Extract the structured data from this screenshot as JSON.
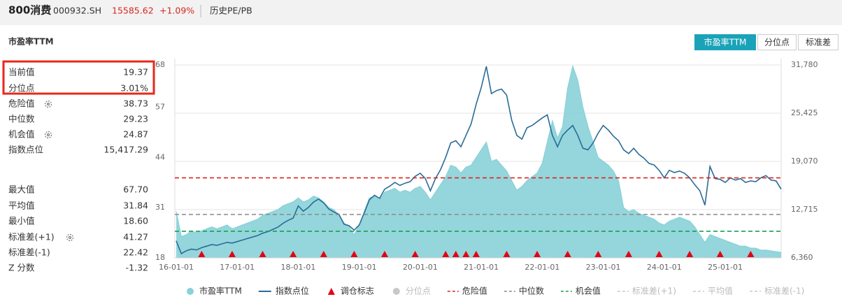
{
  "header": {
    "name": "800消费",
    "code": "000932.SH",
    "price": "15585.62",
    "change": "+1.09%",
    "tab": "历史PE/PB"
  },
  "buttons": [
    "市盈率TTM",
    "分位点",
    "标准差"
  ],
  "stats": {
    "rows": [
      {
        "label": "当前值",
        "value": "19.37"
      },
      {
        "label": "分位点",
        "value": "3.01%"
      },
      {
        "label": "危险值",
        "value": "38.73"
      },
      {
        "label": "中位数",
        "value": "29.23"
      },
      {
        "label": "机会值",
        "value": "24.87"
      },
      {
        "label": "指数点位",
        "value": "15,417.29"
      },
      {
        "label": "最大值",
        "value": "67.70"
      },
      {
        "label": "平均值",
        "value": "31.84"
      },
      {
        "label": "最小值",
        "value": "18.60"
      },
      {
        "label": "标准差(+1)",
        "value": "41.27"
      },
      {
        "label": "标准差(-1)",
        "value": "22.42"
      },
      {
        "label": "Z 分数",
        "value": "-1.32"
      }
    ]
  },
  "chart_data": {
    "type": "line",
    "title": "市盈率TTM",
    "x": [
      "16-01-01",
      "16-02-01",
      "16-03-01",
      "16-04-01",
      "16-05-01",
      "16-06-01",
      "16-07-01",
      "16-08-01",
      "16-09-01",
      "16-10-01",
      "16-11-01",
      "16-12-01",
      "17-01-01",
      "17-02-01",
      "17-03-01",
      "17-04-01",
      "17-05-01",
      "17-06-01",
      "17-07-01",
      "17-08-01",
      "17-09-01",
      "17-10-01",
      "17-11-01",
      "17-12-01",
      "18-01-01",
      "18-02-01",
      "18-03-01",
      "18-04-01",
      "18-05-01",
      "18-06-01",
      "18-07-01",
      "18-08-01",
      "18-09-01",
      "18-10-01",
      "18-11-01",
      "18-12-01",
      "19-01-01",
      "19-02-01",
      "19-03-01",
      "19-04-01",
      "19-05-01",
      "19-06-01",
      "19-07-01",
      "19-08-01",
      "19-09-01",
      "19-10-01",
      "19-11-01",
      "19-12-01",
      "20-01-01",
      "20-02-01",
      "20-03-01",
      "20-04-01",
      "20-05-01",
      "20-06-01",
      "20-07-01",
      "20-08-01",
      "20-09-01",
      "20-10-01",
      "20-11-01",
      "20-12-01",
      "21-01-01",
      "21-02-01",
      "21-03-01",
      "21-04-01",
      "21-05-01",
      "21-06-01",
      "21-07-01",
      "21-08-01",
      "21-09-01",
      "21-10-01",
      "21-11-01",
      "21-12-01",
      "22-01-01",
      "22-02-01",
      "22-03-01",
      "22-04-01",
      "22-05-01",
      "22-06-01",
      "22-07-01",
      "22-08-01",
      "22-09-01",
      "22-10-01",
      "22-11-01",
      "22-12-01",
      "23-01-01",
      "23-02-01",
      "23-03-01",
      "23-04-01",
      "23-05-01",
      "23-06-01",
      "23-07-01",
      "23-08-01",
      "23-09-01",
      "23-10-01",
      "23-11-01",
      "23-12-01",
      "24-01-01",
      "24-02-01",
      "24-03-01",
      "24-04-01",
      "24-05-01",
      "24-06-01",
      "24-07-01",
      "24-08-01",
      "24-09-01",
      "24-10-01",
      "24-11-01",
      "24-12-01",
      "25-01-01",
      "25-02-01",
      "25-03-01",
      "25-04-01",
      "25-05-01",
      "25-06-01",
      "25-07-01",
      "25-08-01",
      "25-09-01",
      "25-10-01",
      "25-11-01",
      "25-12-01"
    ],
    "series": [
      {
        "name": "市盈率TTM",
        "type": "area",
        "color": "#88d2d8",
        "values": [
          30,
          23.5,
          24,
          25,
          24.5,
          25,
          25.5,
          26,
          25.5,
          26,
          26.5,
          25.5,
          26,
          26.5,
          27,
          27.5,
          28,
          29,
          29.5,
          30,
          30.5,
          31.5,
          32,
          32.5,
          33.5,
          32.5,
          33,
          34,
          33.5,
          32.5,
          31,
          30.5,
          29,
          27,
          26,
          24,
          26.5,
          30,
          33.5,
          34,
          33,
          35,
          35.5,
          36,
          35,
          35.5,
          35,
          36,
          36.5,
          35,
          33,
          35,
          37,
          39,
          42,
          41.5,
          40,
          41.5,
          42,
          44,
          46,
          48,
          43,
          43.5,
          42,
          40.5,
          38,
          35.5,
          36.5,
          38,
          39,
          40,
          42.5,
          48,
          53.5,
          49,
          52,
          62,
          67.7,
          64,
          57,
          52,
          48,
          44,
          43,
          42,
          40.5,
          38,
          31,
          30,
          30.5,
          29.5,
          29,
          28.5,
          28,
          27,
          26.5,
          27.5,
          28,
          28.5,
          28,
          27.5,
          26,
          24,
          22,
          24,
          23.5,
          23,
          22.5,
          22,
          21.5,
          21,
          21,
          20.5,
          20.5,
          20,
          20,
          19.8,
          19.6,
          19.37
        ]
      },
      {
        "name": "指数点位",
        "type": "line",
        "axis": "y2",
        "color": "#2b6c96",
        "values": [
          8600,
          6900,
          7300,
          7500,
          7400,
          7700,
          7900,
          8100,
          8000,
          8200,
          8400,
          8300,
          8500,
          8700,
          8900,
          9100,
          9300,
          9600,
          9800,
          10100,
          10400,
          10900,
          11300,
          11600,
          13200,
          12500,
          13000,
          13700,
          14100,
          13600,
          12800,
          12400,
          12100,
          10800,
          10600,
          10000,
          10700,
          12300,
          14000,
          14600,
          14200,
          15400,
          15800,
          16300,
          15900,
          16200,
          16400,
          17100,
          17500,
          16800,
          15200,
          16800,
          18000,
          19600,
          21500,
          21800,
          21000,
          22500,
          24000,
          26600,
          28800,
          31600,
          28000,
          28400,
          28600,
          27800,
          24500,
          22500,
          22000,
          23500,
          23800,
          24300,
          24800,
          25200,
          22500,
          21000,
          22500,
          23200,
          23800,
          22500,
          20800,
          20600,
          21500,
          22800,
          23800,
          23200,
          22400,
          21800,
          20600,
          20100,
          20800,
          20000,
          19500,
          18800,
          18600,
          17900,
          16900,
          17900,
          17600,
          17800,
          17500,
          16900,
          16000,
          15200,
          13300,
          18400,
          16800,
          16700,
          16300,
          16900,
          16600,
          16800,
          16300,
          16500,
          16400,
          16900,
          17200,
          16600,
          16500,
          15417.29
        ]
      },
      {
        "name": "分位点",
        "visible": false,
        "color": "#c8c8c8"
      }
    ],
    "markers": {
      "name": "调仓标志",
      "color": "#e60012",
      "dates": [
        "16-06-01",
        "16-12-01",
        "17-06-01",
        "17-12-01",
        "18-06-01",
        "18-12-01",
        "19-06-01",
        "19-12-01",
        "20-06-01",
        "20-08-01",
        "20-10-01",
        "20-12-01",
        "21-06-01",
        "21-12-01",
        "22-06-01",
        "22-12-01",
        "23-06-01",
        "23-12-01",
        "24-06-01",
        "24-12-01",
        "25-06-01"
      ]
    },
    "reference_lines": [
      {
        "name": "危险值",
        "value": 38.73,
        "color": "#d7261e"
      },
      {
        "name": "中位数",
        "value": 29.23,
        "color": "#8a8a8a"
      },
      {
        "name": "机会值",
        "value": 24.87,
        "color": "#1a9e55"
      },
      {
        "name": "标准差(+1)",
        "visible": false,
        "color": "#c8c8c8"
      },
      {
        "name": "平均值",
        "visible": false,
        "color": "#c8c8c8"
      },
      {
        "name": "标准差(-1)",
        "visible": false,
        "color": "#c8c8c8"
      }
    ],
    "xticks": [
      "16-01-01",
      "17-01-01",
      "18-01-01",
      "19-01-01",
      "20-01-01",
      "21-01-01",
      "22-01-01",
      "23-01-01",
      "24-01-01",
      "25-01-01"
    ],
    "ylim": [
      18,
      68
    ],
    "yticks": [
      18,
      31,
      44,
      57,
      68
    ],
    "y2lim": [
      6360,
      31780
    ],
    "y2ticks": [
      {
        "value": 6360,
        "label": "6,360"
      },
      {
        "value": 12715,
        "label": "12,715"
      },
      {
        "value": 19070,
        "label": "19,070"
      },
      {
        "value": 25425,
        "label": "25,425"
      },
      {
        "value": 31780,
        "label": "31,780"
      }
    ],
    "grid": true
  }
}
